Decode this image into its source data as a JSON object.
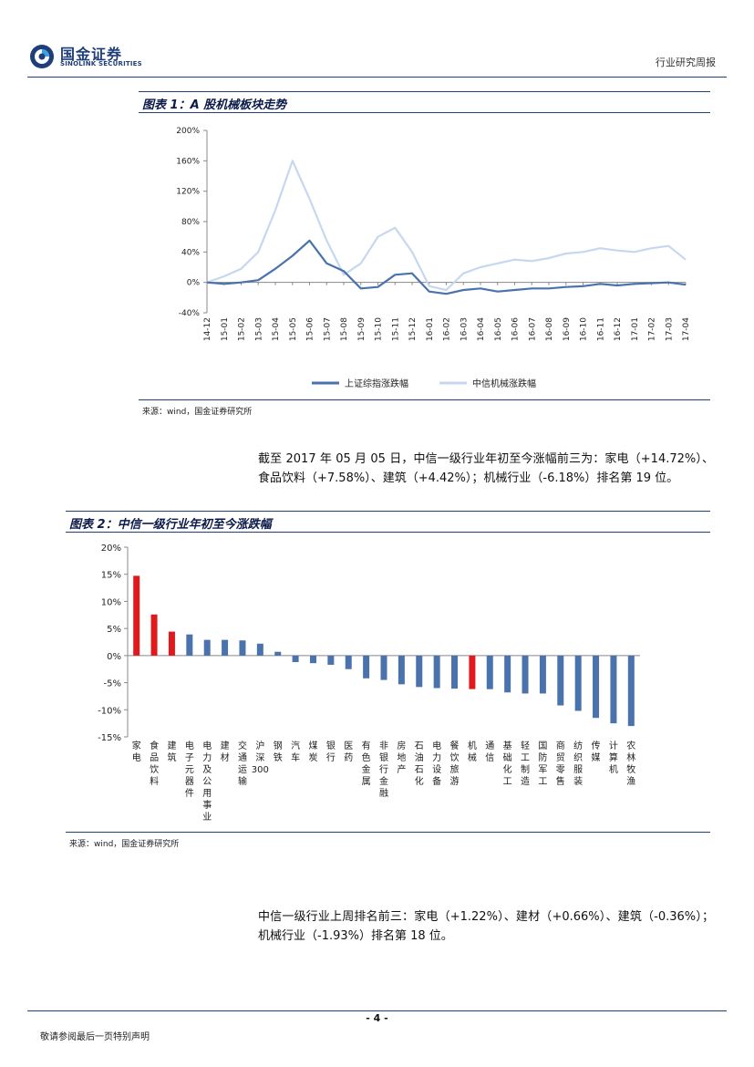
{
  "header": {
    "logo_cn": "国金证券",
    "logo_en": "SINOLINK SECURITIES",
    "report_type": "行业研究周报"
  },
  "figure1": {
    "caption": "图表 1：A 股机械板块走势",
    "source": "来源：wind，国金证券研究所"
  },
  "paragraph1": "截至 2017 年 05 月 05 日，中信一级行业年初至今涨幅前三为：家电（+14.72%）、食品饮料（+7.58%）、建筑（+4.42%）；机械行业（-6.18%）排名第 19 位。",
  "figure2": {
    "caption": "图表 2：中信一级行业年初至今涨跌幅",
    "source": "来源：wind，国金证券研究所"
  },
  "paragraph2": "中信一级行业上周排名前三：家电（+1.22%）、建材（+0.66%）、建筑（-0.36%）；机械行业（-1.93%）排名第 18 位。",
  "footer": {
    "page_number": "- 4 -",
    "note": "敬请参阅最后一页特别声明"
  },
  "chart_data": [
    {
      "type": "line",
      "title": "",
      "x": [
        "14-12",
        "15-01",
        "15-02",
        "15-03",
        "15-04",
        "15-05",
        "15-06",
        "15-07",
        "15-08",
        "15-09",
        "15-10",
        "15-11",
        "15-12",
        "16-01",
        "16-02",
        "16-03",
        "16-04",
        "16-05",
        "16-06",
        "16-07",
        "16-08",
        "16-09",
        "16-10",
        "16-11",
        "16-12",
        "17-01",
        "17-02",
        "17-03",
        "17-04"
      ],
      "ylim": [
        -40,
        200
      ],
      "yticks": [
        "-40%",
        "0%",
        "40%",
        "80%",
        "120%",
        "160%",
        "200%"
      ],
      "series": [
        {
          "name": "上证综指涨跌幅",
          "color": "#4a72ad",
          "values": [
            0,
            -2,
            0,
            3,
            18,
            35,
            55,
            25,
            15,
            -8,
            -6,
            10,
            12,
            -12,
            -15,
            -10,
            -8,
            -12,
            -10,
            -8,
            -8,
            -6,
            -5,
            -2,
            -4,
            -2,
            -1,
            0,
            -3
          ]
        },
        {
          "name": "中信机械涨跌幅",
          "color": "#c7d7ef",
          "values": [
            0,
            8,
            18,
            40,
            95,
            160,
            110,
            55,
            10,
            25,
            60,
            72,
            40,
            -5,
            -10,
            12,
            20,
            25,
            30,
            28,
            32,
            38,
            40,
            45,
            42,
            40,
            45,
            48,
            30
          ]
        }
      ]
    },
    {
      "type": "bar",
      "title": "",
      "ylim": [
        -15,
        20
      ],
      "yticks": [
        "-15%",
        "-10%",
        "-5%",
        "0%",
        "5%",
        "10%",
        "15%",
        "20%"
      ],
      "categories": [
        "家电",
        "食品饮料",
        "建筑",
        "电子元器件",
        "电力及公用事业",
        "建材",
        "交通运输",
        "沪深300",
        "钢铁",
        "汽车",
        "煤炭",
        "银行",
        "医药",
        "有色金属",
        "非银行金融",
        "房地产",
        "石油石化",
        "电力设备",
        "餐饮旅游",
        "机械",
        "通信",
        "基础化工",
        "轻工制造",
        "国防军工",
        "商贸零售",
        "纺织服装",
        "传媒",
        "计算机",
        "农林牧渔"
      ],
      "values": [
        14.72,
        7.58,
        4.42,
        3.9,
        2.9,
        2.9,
        2.8,
        2.2,
        0.7,
        -1.2,
        -1.4,
        -1.7,
        -2.5,
        -4.2,
        -4.5,
        -5.3,
        -5.8,
        -6.0,
        -6.1,
        -6.18,
        -6.2,
        -6.8,
        -7.0,
        -7.0,
        -9.2,
        -10.2,
        -11.5,
        -12.5,
        -13.0
      ],
      "highlight_indices": [
        0,
        1,
        2,
        19
      ],
      "bar_color": "#4a72ad",
      "highlight_color": "#e0191d"
    }
  ]
}
